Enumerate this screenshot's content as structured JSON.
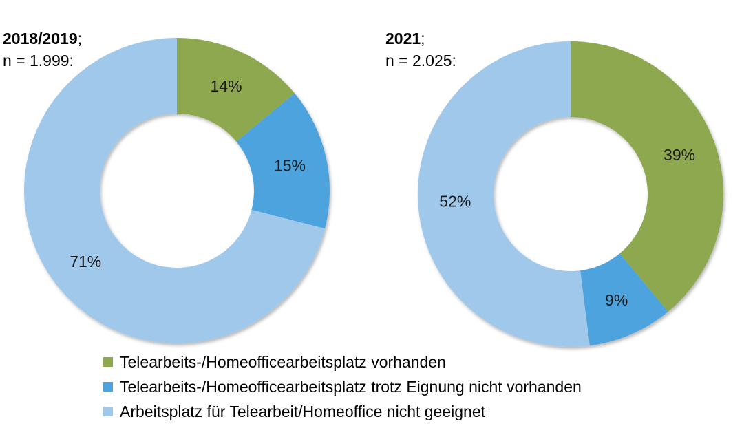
{
  "colors": {
    "vorhanden": "#8ea84f",
    "trotz": "#4ea3dd",
    "nicht_geeignet": "#9fc8ea"
  },
  "chart_data": [
    {
      "type": "pie",
      "variant": "donut",
      "title": "2018/2019",
      "title_suffix": ";",
      "subtitle": "n = 1.999:",
      "categories": [
        "Telearbeits-/Homeofficearbeitsplatz vorhanden",
        "Telearbeits-/Homeofficearbeitsplatz trotz Eignung nicht vorhanden",
        "Arbeitsplatz für Telearbeit/Homeoffice nicht geeignet"
      ],
      "values": [
        14,
        15,
        71
      ],
      "data_labels": [
        "14%",
        "15%",
        "71%"
      ]
    },
    {
      "type": "pie",
      "variant": "donut",
      "title": "2021",
      "title_suffix": ";",
      "subtitle": "n = 2.025:",
      "categories": [
        "Telearbeits-/Homeofficearbeitsplatz vorhanden",
        "Telearbeits-/Homeofficearbeitsplatz trotz Eignung nicht vorhanden",
        "Arbeitsplatz für Telearbeit/Homeoffice nicht geeignet"
      ],
      "values": [
        39,
        9,
        52
      ],
      "data_labels": [
        "39%",
        "9%",
        "52%"
      ]
    }
  ],
  "legend": {
    "placement": "bottom",
    "items": [
      {
        "label": "Telearbeits-/Homeofficearbeitsplatz vorhanden",
        "color": "#8ea84f"
      },
      {
        "label": "Telearbeits-/Homeofficearbeitsplatz trotz Eignung nicht vorhanden",
        "color": "#4ea3dd"
      },
      {
        "label": "Arbeitsplatz für Telearbeit/Homeoffice nicht geeignet",
        "color": "#9fc8ea"
      }
    ]
  }
}
